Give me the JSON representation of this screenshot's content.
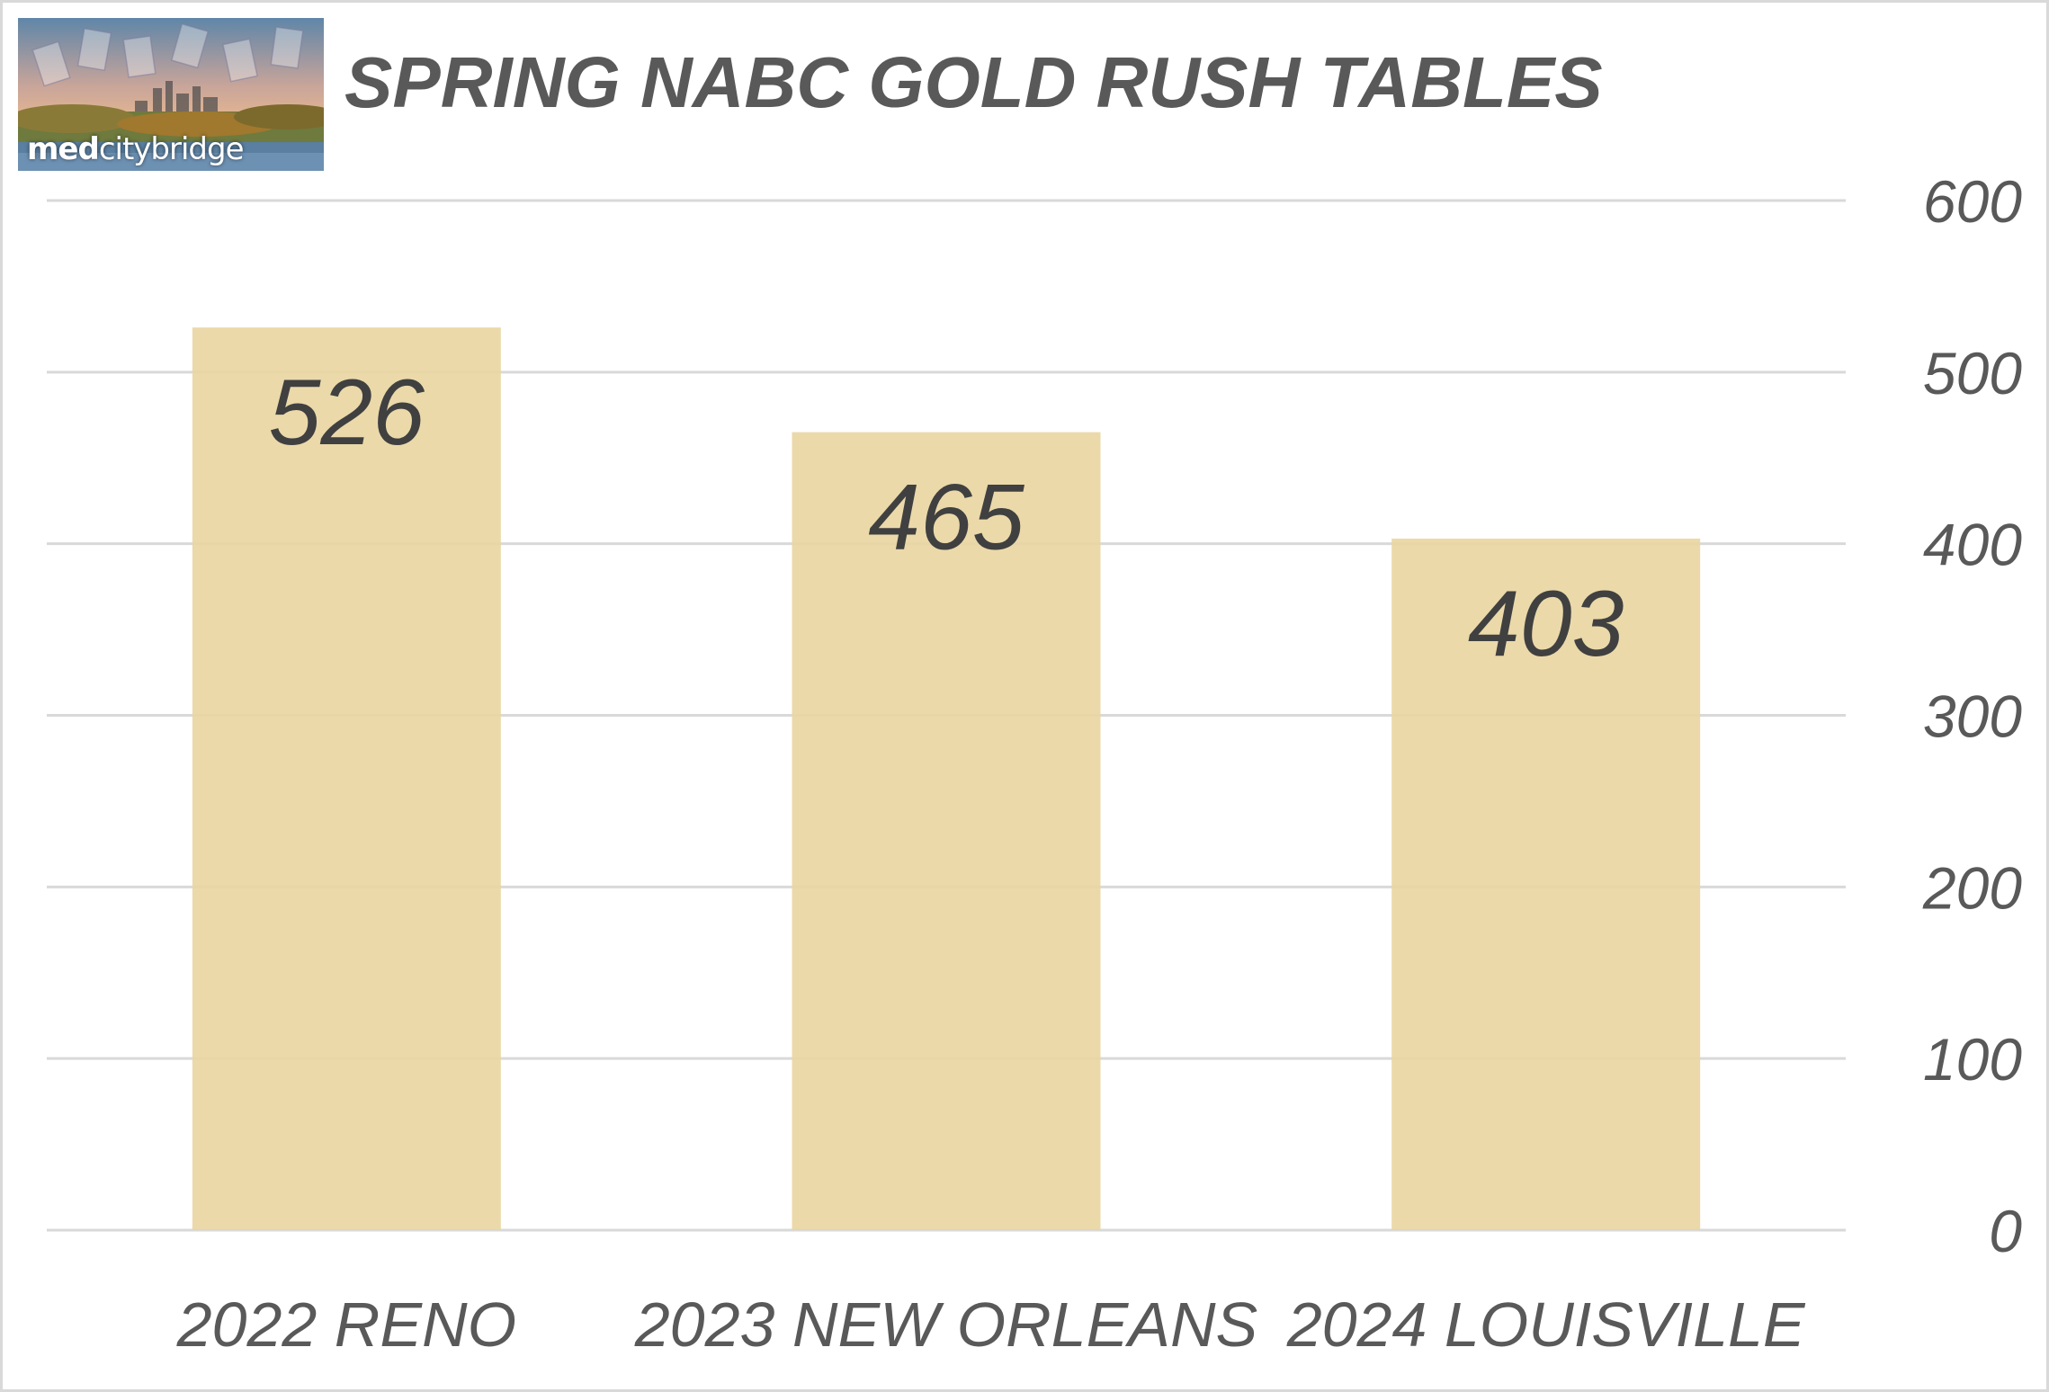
{
  "logo": {
    "text_bold": "med",
    "text_regular": "citybridge"
  },
  "chart_data": {
    "type": "bar",
    "title": "SPRING NABC GOLD RUSH TABLES",
    "categories": [
      "2022 RENO",
      "2023 NEW ORLEANS",
      "2024 LOUISVILLE"
    ],
    "values": [
      526,
      465,
      403
    ],
    "data_labels": [
      "526",
      "465",
      "403"
    ],
    "ylim": [
      0,
      600
    ],
    "yticks": [
      0,
      100,
      200,
      300,
      400,
      500,
      600
    ],
    "y_axis_position": "right",
    "grid": true,
    "legend": "none",
    "colors": {
      "bar": "#e9d5a1",
      "grid": "#d9d9d9",
      "text": "#595959",
      "data_label": "#404040"
    }
  }
}
